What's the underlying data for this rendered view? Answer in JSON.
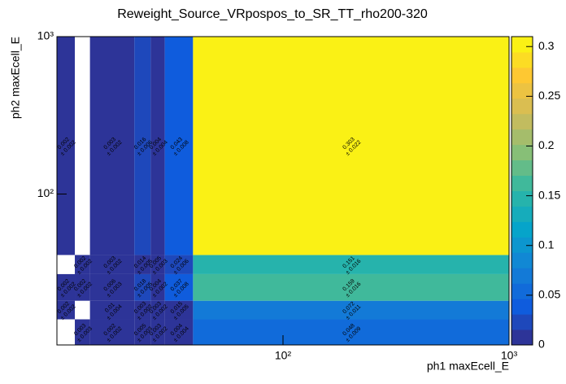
{
  "chart_data": {
    "type": "heatmap",
    "title": "Reweight_Source_VRpospos_to_SR_TT_rho200-320",
    "x_label": "ph1 maxEcell_E",
    "y_label": "ph2 maxEcell_E",
    "log_x": true,
    "log_y": true,
    "xlim": [
      10,
      1000
    ],
    "ylim": [
      11,
      1000
    ],
    "xticks": [
      {
        "value": 100,
        "label": "10²"
      },
      {
        "value": 1000,
        "label": "10³"
      }
    ],
    "yticks": [
      {
        "value": 100,
        "label": "10²"
      },
      {
        "value": 1000,
        "label": "10³"
      }
    ],
    "x_edges": [
      10,
      12,
      14,
      22,
      26,
      30,
      40,
      1000
    ],
    "y_edges": [
      11,
      16,
      21,
      31,
      41,
      1000
    ],
    "z": [
      [
        null,
        0.003,
        0.002,
        0.005,
        0.003,
        0.004,
        0.048
      ],
      [
        0.002,
        null,
        0.01,
        0.003,
        0.003,
        0.015,
        0.072
      ],
      [
        0.002,
        0.002,
        0.006,
        0.018,
        0.004,
        0.037,
        0.159
      ],
      [
        null,
        0.002,
        0.003,
        0.014,
        0.005,
        0.024,
        0.151
      ],
      [
        0.002,
        null,
        0.003,
        0.016,
        0.004,
        0.043,
        0.303
      ]
    ],
    "errors": [
      [
        null,
        0.003,
        0.002,
        0.003,
        0.002,
        0.004,
        0.009
      ],
      [
        0.002,
        null,
        0.004,
        0.002,
        0.002,
        0.005,
        0.011
      ],
      [
        0.002,
        0.002,
        0.003,
        0.005,
        0.002,
        0.008,
        0.016
      ],
      [
        null,
        0.002,
        0.002,
        0.005,
        0.003,
        0.006,
        0.016
      ],
      [
        0.002,
        null,
        0.002,
        0.006,
        0.004,
        0.008,
        0.022
      ]
    ],
    "error_labels": [
      [
        null,
        "± 0.003",
        "± 0.002",
        "± 0.003",
        "± 0.002",
        "± 0.004",
        "± 0.009"
      ],
      [
        "± 0.002",
        null,
        "± 0.004",
        "± 0.002",
        "± 0.002",
        "± 0.005",
        "± 0.011"
      ],
      [
        "± 0.002",
        "± 0.002",
        "± 0.003",
        "± 0.005",
        "± 0.002",
        "± 0.008",
        "± 0.016"
      ],
      [
        null,
        "± 0.002",
        "± 0.002",
        "± 0.005",
        "± 0.003",
        "± 0.006",
        "± 0.016"
      ],
      [
        "± 0.002",
        null,
        "± 0.002",
        "± 0.006",
        "± 0.004",
        "± 0.008",
        "± 0.022"
      ]
    ],
    "zlim": [
      0,
      0.31
    ],
    "zticks": [
      0,
      0.05,
      0.1,
      0.15,
      0.2,
      0.25,
      0.3
    ]
  }
}
